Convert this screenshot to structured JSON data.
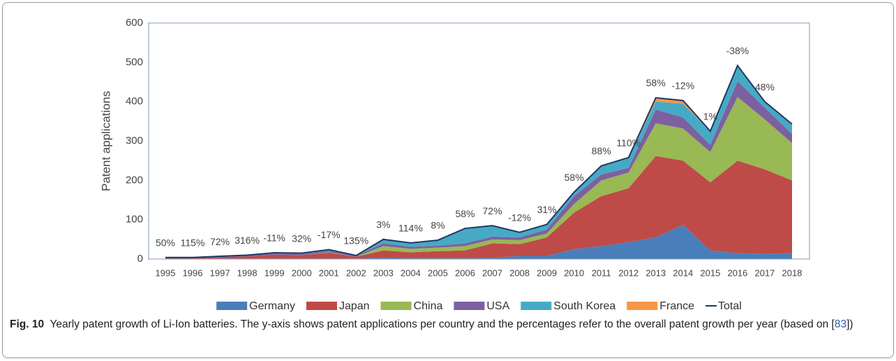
{
  "chart_data": {
    "type": "stacked_area",
    "ylabel": "Patent applications",
    "categories": [
      "1995",
      "1996",
      "1997",
      "1998",
      "1999",
      "2000",
      "2001",
      "2002",
      "2003",
      "2004",
      "2005",
      "2006",
      "2007",
      "2008",
      "2009",
      "2010",
      "2011",
      "2012",
      "2013",
      "2014",
      "2015",
      "2016",
      "2017",
      "2018"
    ],
    "series": [
      {
        "name": "Germany",
        "color": "#4a7ebb",
        "values": [
          1,
          1,
          1,
          1,
          1,
          1,
          1,
          1,
          3,
          2,
          2,
          2,
          3,
          8,
          8,
          25,
          33,
          43,
          55,
          87,
          22,
          15,
          13,
          15
        ]
      },
      {
        "name": "Japan",
        "color": "#be4b48",
        "values": [
          2,
          2,
          4,
          6,
          10,
          9,
          15,
          5,
          19,
          15,
          18,
          20,
          37,
          30,
          47,
          93,
          127,
          137,
          207,
          163,
          173,
          235,
          215,
          185
        ]
      },
      {
        "name": "China",
        "color": "#98b954",
        "values": [
          0,
          0,
          0,
          0,
          0,
          0,
          1,
          0,
          11,
          9,
          9,
          11,
          10,
          10,
          10,
          22,
          40,
          40,
          83,
          82,
          77,
          162,
          127,
          95
        ]
      },
      {
        "name": "USA",
        "color": "#7d60a0",
        "values": [
          1,
          1,
          1,
          2,
          3,
          3,
          4,
          2,
          7,
          5,
          5,
          7,
          7,
          7,
          10,
          20,
          15,
          12,
          35,
          28,
          18,
          40,
          30,
          23
        ]
      },
      {
        "name": "South Korea",
        "color": "#46aac5",
        "values": [
          0,
          0,
          1,
          1,
          2,
          2,
          3,
          1,
          10,
          10,
          14,
          38,
          28,
          13,
          13,
          10,
          22,
          24,
          20,
          35,
          33,
          38,
          13,
          23
        ]
      },
      {
        "name": "France",
        "color": "#f79646",
        "values": [
          0,
          0,
          0,
          0,
          0,
          0,
          0,
          0,
          0,
          0,
          0,
          0,
          0,
          0,
          0,
          0,
          0,
          2,
          10,
          8,
          2,
          2,
          2,
          2
        ]
      }
    ],
    "total": {
      "name": "Total",
      "color": "#1f3864",
      "values": [
        4,
        4,
        7,
        10,
        16,
        15,
        24,
        9,
        50,
        41,
        48,
        78,
        85,
        68,
        88,
        170,
        237,
        258,
        410,
        403,
        325,
        492,
        400,
        343
      ]
    },
    "growth_labels": [
      "50%",
      "115%",
      "72%",
      "316%",
      "-11%",
      "32%",
      "-17%",
      "135%",
      "3%",
      "114%",
      "8%",
      "58%",
      "72%",
      "-12%",
      "31%",
      "58%",
      "88%",
      "110%",
      "58%",
      "-12%",
      "1%",
      "-38%",
      "48%",
      null
    ],
    "ylim": [
      0,
      600
    ],
    "yticks": [
      0,
      100,
      200,
      300,
      400,
      500,
      600
    ]
  },
  "caption": {
    "label": "Fig. 10",
    "text": "Yearly patent growth of Li-Ion batteries. The y-axis shows patent applications per country and the percentages refer to the overall patent growth per year (based on [",
    "ref": "83",
    "text_end": "])"
  }
}
